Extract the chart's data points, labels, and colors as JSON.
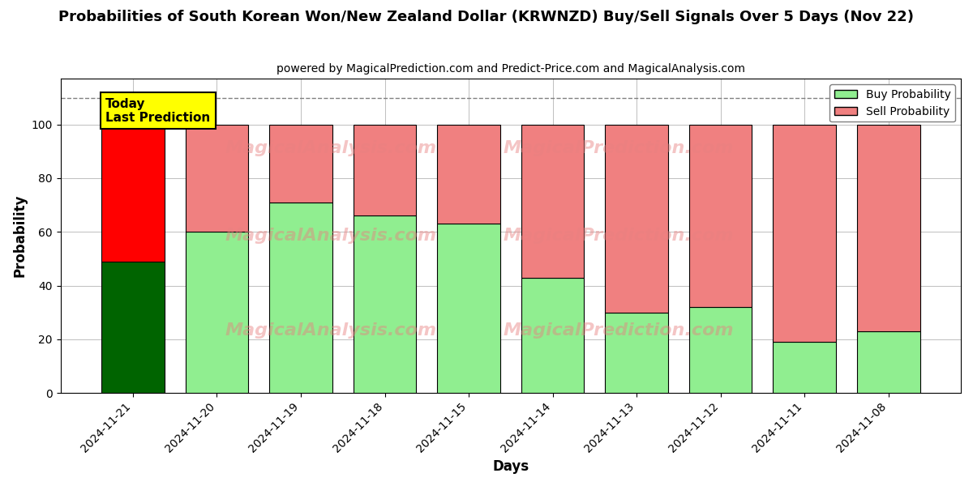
{
  "title": "Probabilities of South Korean Won/New Zealand Dollar (KRWNZD) Buy/Sell Signals Over 5 Days (Nov 22)",
  "subtitle": "powered by MagicalPrediction.com and Predict-Price.com and MagicalAnalysis.com",
  "xlabel": "Days",
  "ylabel": "Probability",
  "dates": [
    "2024-11-21",
    "2024-11-20",
    "2024-11-19",
    "2024-11-18",
    "2024-11-15",
    "2024-11-14",
    "2024-11-13",
    "2024-11-12",
    "2024-11-11",
    "2024-11-08"
  ],
  "buy_values": [
    49,
    60,
    71,
    66,
    63,
    43,
    30,
    32,
    19,
    23
  ],
  "sell_values": [
    51,
    40,
    29,
    34,
    37,
    57,
    70,
    68,
    81,
    77
  ],
  "today_buy_color": "#006400",
  "today_sell_color": "#FF0000",
  "buy_color": "#90EE90",
  "sell_color": "#F08080",
  "today_annotation_text": "Today\nLast Prediction",
  "today_annotation_bg": "#FFFF00",
  "dashed_line_y": 110,
  "ylim": [
    0,
    117
  ],
  "watermark_line1": "MagicalAnalysis.com",
  "watermark_line2": "MagicalPrediction.com",
  "legend_buy_label": "Buy Probability",
  "legend_sell_label": "Sell Probability",
  "figsize": [
    12,
    6
  ],
  "dpi": 100,
  "bar_width": 0.75
}
